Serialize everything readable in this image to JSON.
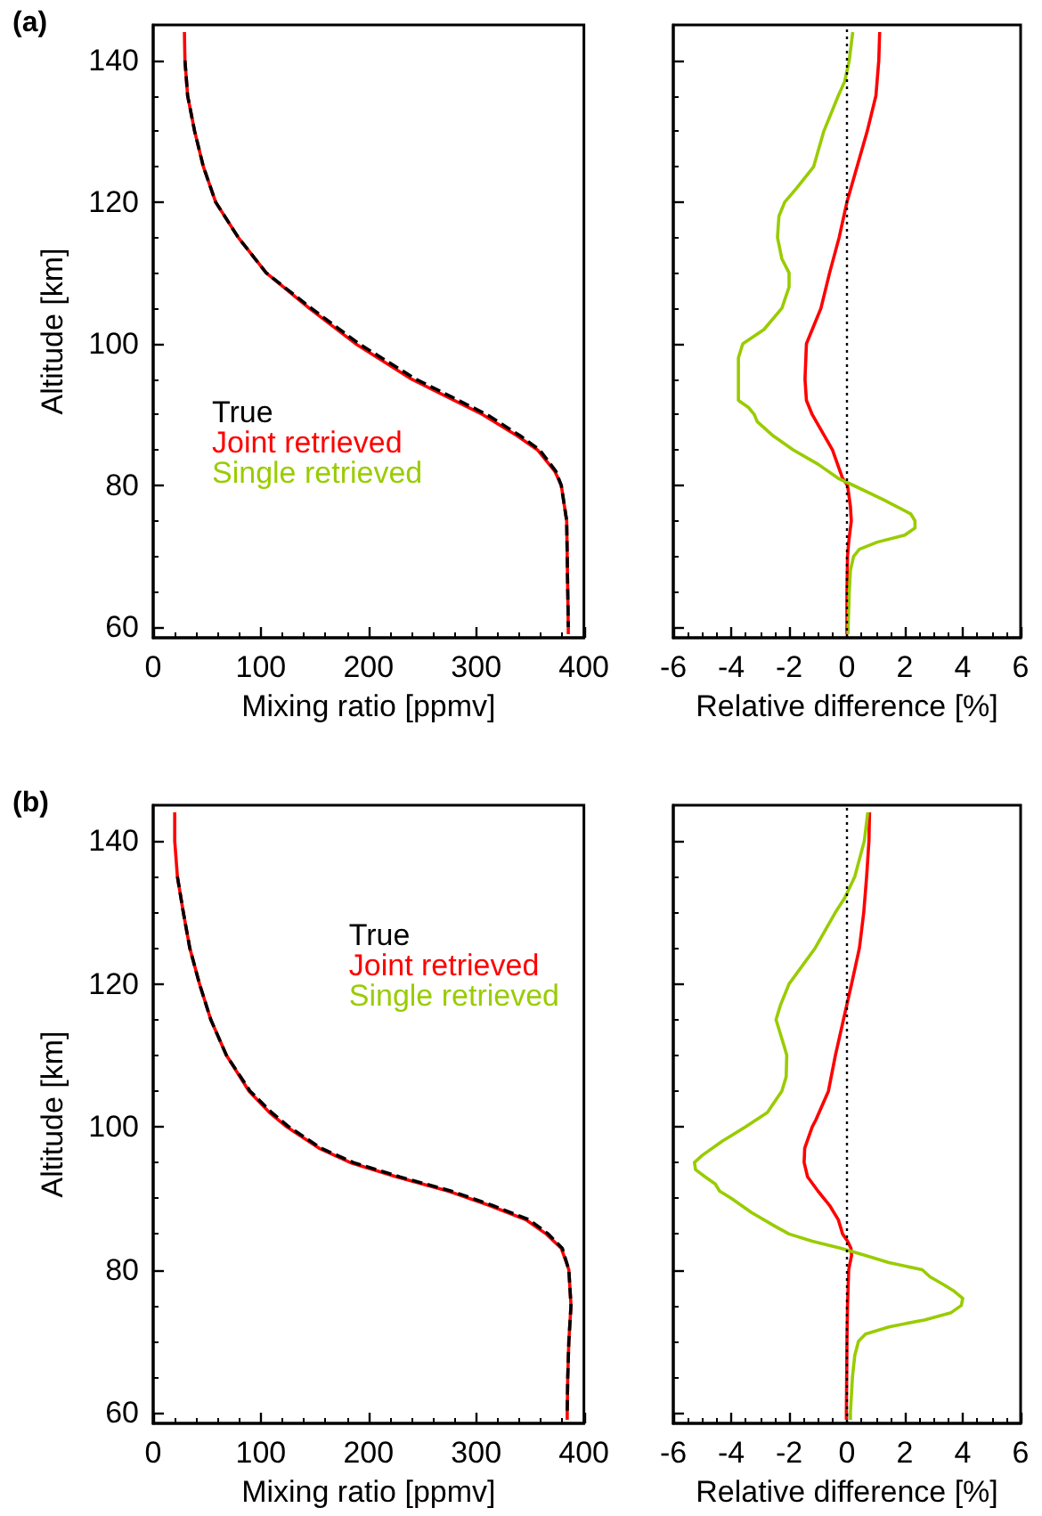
{
  "chart_data": [
    {
      "type": "line",
      "title": "(a)",
      "xlabel": "Mixing ratio [ppmv]",
      "ylabel": "Altitude [km]",
      "xlim": [
        0,
        400
      ],
      "xticks": [
        0,
        100,
        200,
        300,
        400
      ],
      "ylim": [
        58.5,
        145
      ],
      "yticks": [
        60,
        80,
        100,
        120,
        140
      ],
      "grid": false,
      "legend": "left",
      "marker": "none",
      "series": [
        {
          "name": "True",
          "color": "#000000",
          "line_style": "dashed",
          "x": [
            29.5,
            32,
            38.5,
            46.6,
            58,
            79,
            105,
            147,
            191,
            244,
            310,
            341,
            359,
            374,
            379,
            384,
            384.5,
            385,
            385.5
          ],
          "values": [
            140,
            135,
            130,
            125,
            120,
            115,
            110,
            105,
            100,
            95,
            90,
            87,
            85,
            82,
            80,
            75,
            70,
            65,
            60
          ]
        },
        {
          "name": "Joint retrieved",
          "color": "#ff0000",
          "x": [
            29,
            29.5,
            32,
            38.5,
            46.6,
            58,
            79,
            105,
            145,
            188,
            240,
            306,
            338,
            357,
            373,
            379,
            384,
            384.5,
            385,
            385.5,
            385.5
          ],
          "values": [
            144,
            140,
            135,
            130,
            125,
            120,
            115,
            110,
            105,
            100,
            95,
            90,
            87,
            85,
            82,
            80,
            75,
            70,
            65,
            60,
            59
          ]
        },
        {
          "name": "Single retrieved",
          "color": "#99cc00",
          "x": [
            null,
            null
          ],
          "values": [
            null,
            null
          ]
        }
      ]
    },
    {
      "type": "line",
      "xlabel": "Relative difference [%]",
      "xlim": [
        -6,
        6
      ],
      "xticks": [
        -6,
        -4,
        -2,
        0,
        2,
        4,
        6
      ],
      "ylim": [
        58.5,
        145
      ],
      "yticks": [
        60,
        80,
        100,
        120,
        140
      ],
      "tick_labels": "x",
      "grid": false,
      "marker": "none",
      "ref_lines": [
        {
          "axis": "x",
          "value": 0,
          "color": "#000000",
          "line_style": "dotted"
        }
      ],
      "series": [
        {
          "color": "#ff0000",
          "x": [
            1.13,
            1.1,
            1.0,
            0.7,
            0.35,
            0,
            -0.27,
            -0.6,
            -0.9,
            -1.2,
            -1.4,
            -1.45,
            -1.4,
            -1.2,
            -0.5,
            -0.15,
            0.02,
            0.12,
            0.15,
            0.06,
            0.02,
            0,
            0,
            0
          ],
          "values": [
            144,
            140,
            135,
            130,
            125,
            120,
            115,
            110,
            105,
            102,
            100,
            95,
            92,
            90,
            85,
            81,
            80,
            77,
            75,
            72,
            70,
            65,
            60,
            59
          ]
        },
        {
          "color": "#99cc00",
          "x": [
            0.2,
            0.08,
            -0.08,
            -0.3,
            -0.8,
            -1.15,
            -1.73,
            -2.15,
            -2.35,
            -2.4,
            -2.25,
            -2.0,
            -2.0,
            -2.25,
            -2.87,
            -3.6,
            -3.75,
            -3.75,
            -3.75,
            -3.4,
            -3.2,
            -3.1,
            -2.55,
            -1.85,
            -1.0,
            -0.3,
            0.23,
            1.25,
            2.2,
            2.35,
            2.35,
            2.0,
            1.05,
            0.43,
            0.23,
            0.12,
            0.08,
            0.04,
            0.04
          ],
          "values": [
            144,
            140,
            137,
            135,
            130,
            125,
            122,
            120,
            118,
            115,
            112,
            110,
            108,
            105,
            102,
            100,
            98,
            95,
            92,
            91,
            90,
            89,
            87,
            85,
            83,
            81,
            80,
            78,
            76,
            75,
            74,
            73,
            72,
            71,
            70,
            68,
            65,
            60,
            59
          ]
        }
      ]
    },
    {
      "type": "line",
      "title": "(b)",
      "xlabel": "Mixing ratio [ppmv]",
      "ylabel": "Altitude [km]",
      "xlim": [
        0,
        400
      ],
      "xticks": [
        0,
        100,
        200,
        300,
        400
      ],
      "ylim": [
        58.5,
        145
      ],
      "yticks": [
        60,
        80,
        100,
        120,
        140
      ],
      "grid": false,
      "legend": "top right",
      "marker": "none",
      "series": [
        {
          "name": "True",
          "color": "#000000",
          "line_style": "dashed",
          "x": [
            22.5,
            28,
            34,
            43,
            53.5,
            68,
            90,
            110,
            126,
            156,
            186,
            229,
            277,
            315,
            349,
            367,
            380,
            386,
            388,
            386,
            385,
            384.5
          ],
          "values": [
            135,
            130,
            125,
            120,
            115,
            110,
            105,
            102,
            100,
            97,
            95,
            93,
            91,
            89,
            87,
            85,
            83,
            80,
            75,
            70,
            65,
            60
          ]
        },
        {
          "name": "Joint retrieved",
          "color": "#ff0000",
          "x": [
            20,
            20,
            22.5,
            28,
            34,
            43,
            53.5,
            68,
            89,
            108,
            124,
            154,
            183,
            226,
            274,
            312,
            346,
            365,
            379,
            386,
            388,
            386,
            385,
            384.5,
            384.5
          ],
          "values": [
            144,
            140,
            135,
            130,
            125,
            120,
            115,
            110,
            105,
            102,
            100,
            97,
            95,
            93,
            91,
            89,
            87,
            85,
            83,
            80,
            75,
            70,
            65,
            60,
            59
          ]
        },
        {
          "name": "Single retrieved",
          "color": "#99cc00",
          "x": [
            null,
            null
          ],
          "values": [
            null,
            null
          ]
        }
      ]
    },
    {
      "type": "line",
      "xlabel": "Relative difference [%]",
      "xlim": [
        -6,
        6
      ],
      "xticks": [
        -6,
        -4,
        -2,
        0,
        2,
        4,
        6
      ],
      "ylim": [
        58.5,
        145
      ],
      "yticks": [
        60,
        80,
        100,
        120,
        140
      ],
      "tick_labels": "x",
      "grid": false,
      "marker": "none",
      "ref_lines": [
        {
          "axis": "x",
          "value": 0,
          "color": "#000000",
          "line_style": "dotted"
        }
      ],
      "series": [
        {
          "color": "#ff0000",
          "x": [
            0.78,
            0.76,
            0.68,
            0.58,
            0.43,
            0.16,
            -0.12,
            -0.4,
            -0.64,
            -1.07,
            -1.2,
            -1.46,
            -1.48,
            -1.36,
            -1.0,
            -0.6,
            -0.3,
            -0.15,
            0.02,
            0.14,
            0.16,
            0.06,
            0.02,
            0,
            -0.02,
            -0.02
          ],
          "values": [
            144,
            140,
            135,
            130,
            125,
            120,
            115,
            110,
            105,
            101,
            100,
            97,
            95,
            93,
            91,
            89,
            87,
            85,
            84,
            83,
            82,
            80,
            75,
            70,
            60,
            59
          ]
        },
        {
          "color": "#99cc00",
          "x": [
            0.72,
            0.6,
            0.27,
            -0.08,
            -0.4,
            -1.1,
            -2.0,
            -2.3,
            -2.45,
            -2.3,
            -2.15,
            -2.08,
            -2.1,
            -2.25,
            -2.75,
            -3.5,
            -4.3,
            -5.0,
            -5.27,
            -5.23,
            -4.9,
            -4.55,
            -4.4,
            -4.0,
            -3.3,
            -2.45,
            -2.0,
            -1.2,
            -0.2,
            0.64,
            1.45,
            2.6,
            2.87,
            3.3,
            3.7,
            4.0,
            3.95,
            3.6,
            2.7,
            1.45,
            0.64,
            0.4,
            0.27,
            0.19,
            0.12,
            0.12
          ],
          "values": [
            144,
            140,
            135,
            132,
            130,
            125,
            120,
            117,
            115,
            113,
            111,
            110,
            107,
            105,
            102,
            100,
            98,
            96,
            95,
            94,
            93,
            92,
            91,
            90,
            88,
            86,
            85,
            84,
            83,
            82,
            81,
            80,
            79,
            78,
            77,
            76,
            75,
            74,
            73,
            72,
            71,
            70,
            68,
            65,
            60,
            59
          ]
        }
      ]
    }
  ]
}
